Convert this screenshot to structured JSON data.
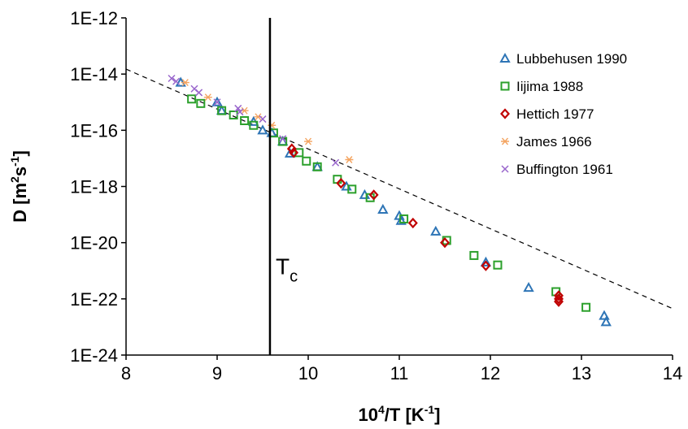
{
  "chart_data": {
    "type": "scatter",
    "y_scale": "log",
    "xlim": [
      8,
      14
    ],
    "ylim": [
      1e-24,
      1e-12
    ],
    "x_ticks": [
      8,
      9,
      10,
      11,
      12,
      13,
      14
    ],
    "x_tick_labels": [
      "8",
      "9",
      "10",
      "11",
      "12",
      "13",
      "14"
    ],
    "y_ticks": [
      1e-12,
      1e-14,
      1e-16,
      1e-18,
      1e-20,
      1e-22,
      1e-24
    ],
    "y_tick_labels": [
      "1E-12",
      "1E-14",
      "1E-16",
      "1E-18",
      "1E-20",
      "1E-22",
      "1E-24"
    ],
    "xlabel": {
      "base": "10",
      "sup": "4",
      "rest": "/T [K",
      "unit_sup": "-1",
      "end": "]"
    },
    "ylabel": {
      "text1": "D [m",
      "sup1": "2",
      "text2": "s",
      "sup2": "-1",
      "end": "]"
    },
    "grid": false,
    "legend_position": "top-right",
    "annotations": [
      {
        "type": "vline",
        "x": 9.58
      },
      {
        "type": "label",
        "main": "T",
        "sub": "c",
        "x": 9.75,
        "y": 5e-22
      }
    ],
    "fit_line": {
      "style": "dashed",
      "points": [
        [
          8,
          1.5e-14
        ],
        [
          14,
          4.5e-23
        ]
      ]
    },
    "series": [
      {
        "name": "Lubbehusen 1990",
        "marker": "triangle",
        "color": "#2e75b6",
        "points": [
          [
            8.6,
            5e-15
          ],
          [
            9.0,
            1e-15
          ],
          [
            9.05,
            5e-16
          ],
          [
            9.4,
            2e-16
          ],
          [
            9.5,
            1e-16
          ],
          [
            9.6,
            8e-17
          ],
          [
            9.72,
            4e-17
          ],
          [
            9.8,
            1.5e-17
          ],
          [
            10.1,
            5e-18
          ],
          [
            10.42,
            1e-18
          ],
          [
            10.62,
            5e-19
          ],
          [
            10.82,
            1.5e-19
          ],
          [
            11.0,
            9e-20
          ],
          [
            11.02,
            6e-20
          ],
          [
            11.4,
            2.5e-20
          ],
          [
            11.95,
            2e-21
          ],
          [
            12.42,
            2.5e-22
          ],
          [
            13.25,
            2.5e-23
          ],
          [
            13.27,
            1.5e-23
          ]
        ]
      },
      {
        "name": "Iijima 1988",
        "marker": "square",
        "color": "#2ca02c",
        "points": [
          [
            8.72,
            1.3e-15
          ],
          [
            8.82,
            9e-16
          ],
          [
            9.05,
            5e-16
          ],
          [
            9.18,
            3.5e-16
          ],
          [
            9.3,
            2.2e-16
          ],
          [
            9.4,
            1.5e-16
          ],
          [
            9.62,
            8e-17
          ],
          [
            9.72,
            4e-17
          ],
          [
            9.9,
            1.6e-17
          ],
          [
            9.98,
            8e-18
          ],
          [
            10.1,
            5e-18
          ],
          [
            10.32,
            1.8e-18
          ],
          [
            10.48,
            8e-19
          ],
          [
            10.68,
            4e-19
          ],
          [
            11.05,
            7e-20
          ],
          [
            11.52,
            1.2e-20
          ],
          [
            11.82,
            3.5e-21
          ],
          [
            12.08,
            1.6e-21
          ],
          [
            12.72,
            1.8e-22
          ],
          [
            13.05,
            5e-23
          ]
        ]
      },
      {
        "name": "Hettich 1977",
        "marker": "diamond",
        "color": "#c00000",
        "points": [
          [
            9.82,
            2.2e-17
          ],
          [
            9.84,
            1.6e-17
          ],
          [
            10.36,
            1.3e-18
          ],
          [
            10.72,
            5e-19
          ],
          [
            11.15,
            5e-20
          ],
          [
            11.5,
            1e-20
          ],
          [
            11.95,
            1.5e-21
          ],
          [
            12.75,
            1.3e-22
          ],
          [
            12.75,
            1e-22
          ],
          [
            12.75,
            8e-23
          ]
        ]
      },
      {
        "name": "James 1966",
        "marker": "asterisk",
        "color": "#f4a460",
        "points": [
          [
            8.65,
            5e-15
          ],
          [
            8.9,
            1.5e-15
          ],
          [
            9.3,
            5e-16
          ],
          [
            9.45,
            3e-16
          ],
          [
            9.6,
            1.5e-16
          ],
          [
            10.0,
            4e-17
          ],
          [
            10.45,
            9e-18
          ]
        ]
      },
      {
        "name": "Buffington 1961",
        "marker": "x",
        "color": "#9966cc",
        "points": [
          [
            8.5,
            7e-15
          ],
          [
            8.55,
            5.5e-15
          ],
          [
            8.75,
            3e-15
          ],
          [
            8.8,
            2.2e-15
          ],
          [
            9.0,
            1e-15
          ],
          [
            9.23,
            6e-16
          ],
          [
            9.25,
            4.5e-16
          ],
          [
            9.5,
            2.5e-16
          ],
          [
            9.72,
            5e-17
          ],
          [
            10.3,
            7e-18
          ]
        ]
      }
    ]
  }
}
